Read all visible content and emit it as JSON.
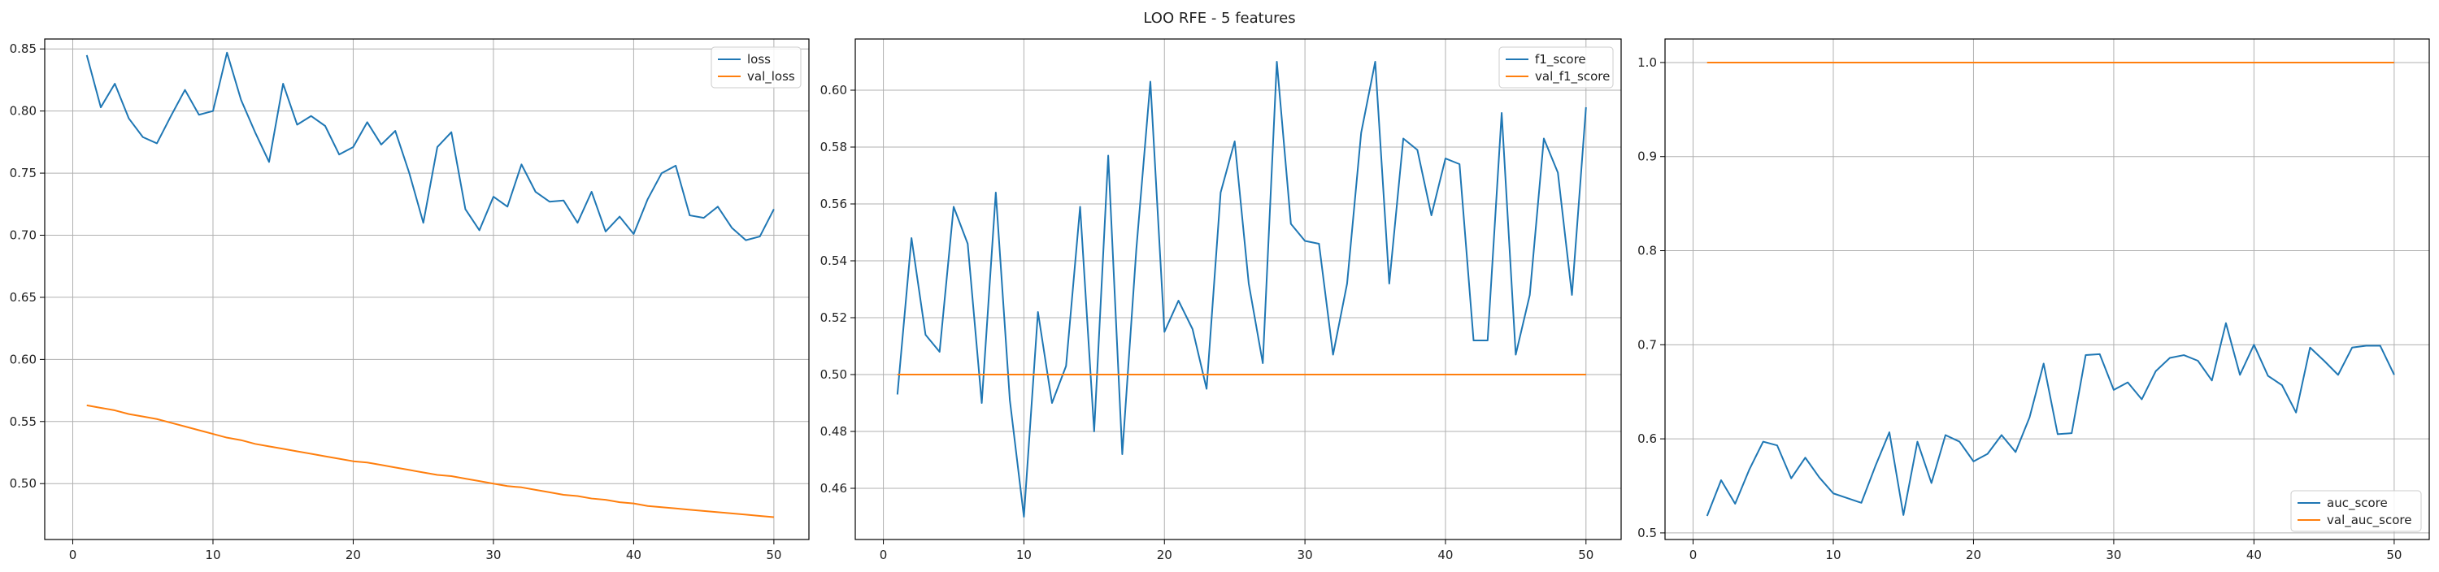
{
  "figure": {
    "suptitle": "LOO RFE - 5 features"
  },
  "colors": {
    "train": "#1f77b4",
    "val": "#ff7f0e",
    "grid": "#b0b0b0",
    "axes": "#000000"
  },
  "chart_data": [
    {
      "type": "line",
      "x": [
        1,
        2,
        3,
        4,
        5,
        6,
        7,
        8,
        9,
        10,
        11,
        12,
        13,
        14,
        15,
        16,
        17,
        18,
        19,
        20,
        21,
        22,
        23,
        24,
        25,
        26,
        27,
        28,
        29,
        30,
        31,
        32,
        33,
        34,
        35,
        36,
        37,
        38,
        39,
        40,
        41,
        42,
        43,
        44,
        45,
        46,
        47,
        48,
        49,
        50
      ],
      "series": [
        {
          "name": "loss",
          "color": "#1f77b4",
          "values": [
            0.845,
            0.803,
            0.822,
            0.794,
            0.779,
            0.774,
            0.796,
            0.817,
            0.797,
            0.8,
            0.847,
            0.809,
            0.783,
            0.759,
            0.822,
            0.789,
            0.796,
            0.788,
            0.765,
            0.771,
            0.791,
            0.773,
            0.784,
            0.75,
            0.71,
            0.771,
            0.783,
            0.721,
            0.704,
            0.731,
            0.723,
            0.757,
            0.735,
            0.727,
            0.728,
            0.71,
            0.735,
            0.703,
            0.715,
            0.701,
            0.729,
            0.75,
            0.756,
            0.716,
            0.714,
            0.723,
            0.706,
            0.696,
            0.699,
            0.721
          ]
        },
        {
          "name": "val_loss",
          "color": "#ff7f0e",
          "values": [
            0.563,
            0.561,
            0.559,
            0.556,
            0.554,
            0.552,
            0.549,
            0.546,
            0.543,
            0.54,
            0.537,
            0.535,
            0.532,
            0.53,
            0.528,
            0.526,
            0.524,
            0.522,
            0.52,
            0.518,
            0.517,
            0.515,
            0.513,
            0.511,
            0.509,
            0.507,
            0.506,
            0.504,
            0.502,
            0.5,
            0.498,
            0.497,
            0.495,
            0.493,
            0.491,
            0.49,
            0.488,
            0.487,
            0.485,
            0.484,
            0.482,
            0.481,
            0.48,
            0.479,
            0.478,
            0.477,
            0.476,
            0.475,
            0.474,
            0.473
          ]
        }
      ],
      "xlim": [
        -2,
        52.5
      ],
      "ylim": [
        0.455,
        0.858
      ],
      "xticks": [
        0,
        10,
        20,
        30,
        40,
        50
      ],
      "xtick_labels": [
        "0",
        "10",
        "20",
        "30",
        "40",
        "50"
      ],
      "yticks": [
        0.5,
        0.55,
        0.6,
        0.65,
        0.7,
        0.75,
        0.8,
        0.85
      ],
      "ytick_labels": [
        "0.50",
        "0.55",
        "0.60",
        "0.65",
        "0.70",
        "0.75",
        "0.80",
        "0.85"
      ],
      "grid": true,
      "legend": "top-right"
    },
    {
      "type": "line",
      "x": [
        1,
        2,
        3,
        4,
        5,
        6,
        7,
        8,
        9,
        10,
        11,
        12,
        13,
        14,
        15,
        16,
        17,
        18,
        19,
        20,
        21,
        22,
        23,
        24,
        25,
        26,
        27,
        28,
        29,
        30,
        31,
        32,
        33,
        34,
        35,
        36,
        37,
        38,
        39,
        40,
        41,
        42,
        43,
        44,
        45,
        46,
        47,
        48,
        49,
        50
      ],
      "series": [
        {
          "name": "f1_score",
          "color": "#1f77b4",
          "values": [
            0.493,
            0.548,
            0.514,
            0.508,
            0.559,
            0.546,
            0.49,
            0.564,
            0.491,
            0.45,
            0.522,
            0.49,
            0.503,
            0.559,
            0.48,
            0.577,
            0.472,
            0.544,
            0.603,
            0.515,
            0.526,
            0.516,
            0.495,
            0.564,
            0.582,
            0.532,
            0.504,
            0.61,
            0.553,
            0.547,
            0.546,
            0.507,
            0.532,
            0.585,
            0.61,
            0.532,
            0.583,
            0.579,
            0.556,
            0.576,
            0.574,
            0.512,
            0.512,
            0.592,
            0.507,
            0.528,
            0.583,
            0.571,
            0.528,
            0.594
          ]
        },
        {
          "name": "val_f1_score",
          "color": "#ff7f0e",
          "values": [
            0.5,
            0.5,
            0.5,
            0.5,
            0.5,
            0.5,
            0.5,
            0.5,
            0.5,
            0.5,
            0.5,
            0.5,
            0.5,
            0.5,
            0.5,
            0.5,
            0.5,
            0.5,
            0.5,
            0.5,
            0.5,
            0.5,
            0.5,
            0.5,
            0.5,
            0.5,
            0.5,
            0.5,
            0.5,
            0.5,
            0.5,
            0.5,
            0.5,
            0.5,
            0.5,
            0.5,
            0.5,
            0.5,
            0.5,
            0.5,
            0.5,
            0.5,
            0.5,
            0.5,
            0.5,
            0.5,
            0.5,
            0.5,
            0.5,
            0.5
          ]
        }
      ],
      "xlim": [
        -2,
        52.5
      ],
      "ylim": [
        0.442,
        0.618
      ],
      "xticks": [
        0,
        10,
        20,
        30,
        40,
        50
      ],
      "xtick_labels": [
        "0",
        "10",
        "20",
        "30",
        "40",
        "50"
      ],
      "yticks": [
        0.46,
        0.48,
        0.5,
        0.52,
        0.54,
        0.56,
        0.58,
        0.6
      ],
      "ytick_labels": [
        "0.46",
        "0.48",
        "0.50",
        "0.52",
        "0.54",
        "0.56",
        "0.58",
        "0.60"
      ],
      "grid": true,
      "legend": "top-right"
    },
    {
      "type": "line",
      "x": [
        1,
        2,
        3,
        4,
        5,
        6,
        7,
        8,
        9,
        10,
        11,
        12,
        13,
        14,
        15,
        16,
        17,
        18,
        19,
        20,
        21,
        22,
        23,
        24,
        25,
        26,
        27,
        28,
        29,
        30,
        31,
        32,
        33,
        34,
        35,
        36,
        37,
        38,
        39,
        40,
        41,
        42,
        43,
        44,
        45,
        46,
        47,
        48,
        49,
        50
      ],
      "series": [
        {
          "name": "auc_score",
          "color": "#1f77b4",
          "values": [
            0.518,
            0.556,
            0.531,
            0.567,
            0.597,
            0.593,
            0.558,
            0.58,
            0.559,
            0.542,
            0.537,
            0.532,
            0.571,
            0.607,
            0.519,
            0.597,
            0.553,
            0.604,
            0.597,
            0.576,
            0.584,
            0.604,
            0.586,
            0.623,
            0.68,
            0.605,
            0.606,
            0.689,
            0.69,
            0.652,
            0.66,
            0.642,
            0.672,
            0.686,
            0.689,
            0.683,
            0.662,
            0.723,
            0.668,
            0.7,
            0.667,
            0.657,
            0.628,
            0.697,
            0.683,
            0.668,
            0.697,
            0.699,
            0.699,
            0.668
          ]
        },
        {
          "name": "val_auc_score",
          "color": "#ff7f0e",
          "values": [
            1.0,
            1.0,
            1.0,
            1.0,
            1.0,
            1.0,
            1.0,
            1.0,
            1.0,
            1.0,
            1.0,
            1.0,
            1.0,
            1.0,
            1.0,
            1.0,
            1.0,
            1.0,
            1.0,
            1.0,
            1.0,
            1.0,
            1.0,
            1.0,
            1.0,
            1.0,
            1.0,
            1.0,
            1.0,
            1.0,
            1.0,
            1.0,
            1.0,
            1.0,
            1.0,
            1.0,
            1.0,
            1.0,
            1.0,
            1.0,
            1.0,
            1.0,
            1.0,
            1.0,
            1.0,
            1.0,
            1.0,
            1.0,
            1.0,
            1.0
          ]
        }
      ],
      "xlim": [
        -2,
        52.5
      ],
      "ylim": [
        0.493,
        1.025
      ],
      "xticks": [
        0,
        10,
        20,
        30,
        40,
        50
      ],
      "xtick_labels": [
        "0",
        "10",
        "20",
        "30",
        "40",
        "50"
      ],
      "yticks": [
        0.5,
        0.6,
        0.7,
        0.8,
        0.9,
        1.0
      ],
      "ytick_labels": [
        "0.5",
        "0.6",
        "0.7",
        "0.8",
        "0.9",
        "1.0"
      ],
      "grid": true,
      "legend": "bottom-right"
    }
  ]
}
